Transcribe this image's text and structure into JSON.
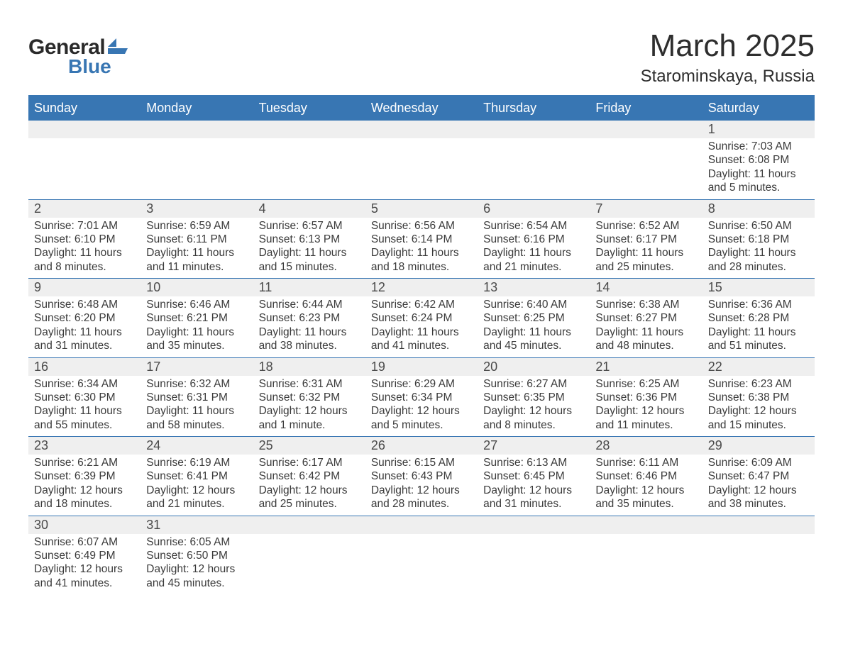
{
  "logo": {
    "textA": "General",
    "textB": "Blue",
    "brand_color": "#3876b3"
  },
  "title": "March 2025",
  "location": "Starominskaya, Russia",
  "colors": {
    "header_bg": "#3876b3",
    "header_fg": "#ffffff",
    "daynum_bg": "#efefef",
    "border": "#3876b3",
    "text": "#3a3a3a"
  },
  "day_headers": [
    "Sunday",
    "Monday",
    "Tuesday",
    "Wednesday",
    "Thursday",
    "Friday",
    "Saturday"
  ],
  "weeks": [
    [
      null,
      null,
      null,
      null,
      null,
      null,
      {
        "n": "1",
        "sunrise": "Sunrise: 7:03 AM",
        "sunset": "Sunset: 6:08 PM",
        "dayl1": "Daylight: 11 hours",
        "dayl2": "and 5 minutes."
      }
    ],
    [
      {
        "n": "2",
        "sunrise": "Sunrise: 7:01 AM",
        "sunset": "Sunset: 6:10 PM",
        "dayl1": "Daylight: 11 hours",
        "dayl2": "and 8 minutes."
      },
      {
        "n": "3",
        "sunrise": "Sunrise: 6:59 AM",
        "sunset": "Sunset: 6:11 PM",
        "dayl1": "Daylight: 11 hours",
        "dayl2": "and 11 minutes."
      },
      {
        "n": "4",
        "sunrise": "Sunrise: 6:57 AM",
        "sunset": "Sunset: 6:13 PM",
        "dayl1": "Daylight: 11 hours",
        "dayl2": "and 15 minutes."
      },
      {
        "n": "5",
        "sunrise": "Sunrise: 6:56 AM",
        "sunset": "Sunset: 6:14 PM",
        "dayl1": "Daylight: 11 hours",
        "dayl2": "and 18 minutes."
      },
      {
        "n": "6",
        "sunrise": "Sunrise: 6:54 AM",
        "sunset": "Sunset: 6:16 PM",
        "dayl1": "Daylight: 11 hours",
        "dayl2": "and 21 minutes."
      },
      {
        "n": "7",
        "sunrise": "Sunrise: 6:52 AM",
        "sunset": "Sunset: 6:17 PM",
        "dayl1": "Daylight: 11 hours",
        "dayl2": "and 25 minutes."
      },
      {
        "n": "8",
        "sunrise": "Sunrise: 6:50 AM",
        "sunset": "Sunset: 6:18 PM",
        "dayl1": "Daylight: 11 hours",
        "dayl2": "and 28 minutes."
      }
    ],
    [
      {
        "n": "9",
        "sunrise": "Sunrise: 6:48 AM",
        "sunset": "Sunset: 6:20 PM",
        "dayl1": "Daylight: 11 hours",
        "dayl2": "and 31 minutes."
      },
      {
        "n": "10",
        "sunrise": "Sunrise: 6:46 AM",
        "sunset": "Sunset: 6:21 PM",
        "dayl1": "Daylight: 11 hours",
        "dayl2": "and 35 minutes."
      },
      {
        "n": "11",
        "sunrise": "Sunrise: 6:44 AM",
        "sunset": "Sunset: 6:23 PM",
        "dayl1": "Daylight: 11 hours",
        "dayl2": "and 38 minutes."
      },
      {
        "n": "12",
        "sunrise": "Sunrise: 6:42 AM",
        "sunset": "Sunset: 6:24 PM",
        "dayl1": "Daylight: 11 hours",
        "dayl2": "and 41 minutes."
      },
      {
        "n": "13",
        "sunrise": "Sunrise: 6:40 AM",
        "sunset": "Sunset: 6:25 PM",
        "dayl1": "Daylight: 11 hours",
        "dayl2": "and 45 minutes."
      },
      {
        "n": "14",
        "sunrise": "Sunrise: 6:38 AM",
        "sunset": "Sunset: 6:27 PM",
        "dayl1": "Daylight: 11 hours",
        "dayl2": "and 48 minutes."
      },
      {
        "n": "15",
        "sunrise": "Sunrise: 6:36 AM",
        "sunset": "Sunset: 6:28 PM",
        "dayl1": "Daylight: 11 hours",
        "dayl2": "and 51 minutes."
      }
    ],
    [
      {
        "n": "16",
        "sunrise": "Sunrise: 6:34 AM",
        "sunset": "Sunset: 6:30 PM",
        "dayl1": "Daylight: 11 hours",
        "dayl2": "and 55 minutes."
      },
      {
        "n": "17",
        "sunrise": "Sunrise: 6:32 AM",
        "sunset": "Sunset: 6:31 PM",
        "dayl1": "Daylight: 11 hours",
        "dayl2": "and 58 minutes."
      },
      {
        "n": "18",
        "sunrise": "Sunrise: 6:31 AM",
        "sunset": "Sunset: 6:32 PM",
        "dayl1": "Daylight: 12 hours",
        "dayl2": "and 1 minute."
      },
      {
        "n": "19",
        "sunrise": "Sunrise: 6:29 AM",
        "sunset": "Sunset: 6:34 PM",
        "dayl1": "Daylight: 12 hours",
        "dayl2": "and 5 minutes."
      },
      {
        "n": "20",
        "sunrise": "Sunrise: 6:27 AM",
        "sunset": "Sunset: 6:35 PM",
        "dayl1": "Daylight: 12 hours",
        "dayl2": "and 8 minutes."
      },
      {
        "n": "21",
        "sunrise": "Sunrise: 6:25 AM",
        "sunset": "Sunset: 6:36 PM",
        "dayl1": "Daylight: 12 hours",
        "dayl2": "and 11 minutes."
      },
      {
        "n": "22",
        "sunrise": "Sunrise: 6:23 AM",
        "sunset": "Sunset: 6:38 PM",
        "dayl1": "Daylight: 12 hours",
        "dayl2": "and 15 minutes."
      }
    ],
    [
      {
        "n": "23",
        "sunrise": "Sunrise: 6:21 AM",
        "sunset": "Sunset: 6:39 PM",
        "dayl1": "Daylight: 12 hours",
        "dayl2": "and 18 minutes."
      },
      {
        "n": "24",
        "sunrise": "Sunrise: 6:19 AM",
        "sunset": "Sunset: 6:41 PM",
        "dayl1": "Daylight: 12 hours",
        "dayl2": "and 21 minutes."
      },
      {
        "n": "25",
        "sunrise": "Sunrise: 6:17 AM",
        "sunset": "Sunset: 6:42 PM",
        "dayl1": "Daylight: 12 hours",
        "dayl2": "and 25 minutes."
      },
      {
        "n": "26",
        "sunrise": "Sunrise: 6:15 AM",
        "sunset": "Sunset: 6:43 PM",
        "dayl1": "Daylight: 12 hours",
        "dayl2": "and 28 minutes."
      },
      {
        "n": "27",
        "sunrise": "Sunrise: 6:13 AM",
        "sunset": "Sunset: 6:45 PM",
        "dayl1": "Daylight: 12 hours",
        "dayl2": "and 31 minutes."
      },
      {
        "n": "28",
        "sunrise": "Sunrise: 6:11 AM",
        "sunset": "Sunset: 6:46 PM",
        "dayl1": "Daylight: 12 hours",
        "dayl2": "and 35 minutes."
      },
      {
        "n": "29",
        "sunrise": "Sunrise: 6:09 AM",
        "sunset": "Sunset: 6:47 PM",
        "dayl1": "Daylight: 12 hours",
        "dayl2": "and 38 minutes."
      }
    ],
    [
      {
        "n": "30",
        "sunrise": "Sunrise: 6:07 AM",
        "sunset": "Sunset: 6:49 PM",
        "dayl1": "Daylight: 12 hours",
        "dayl2": "and 41 minutes."
      },
      {
        "n": "31",
        "sunrise": "Sunrise: 6:05 AM",
        "sunset": "Sunset: 6:50 PM",
        "dayl1": "Daylight: 12 hours",
        "dayl2": "and 45 minutes."
      },
      null,
      null,
      null,
      null,
      null
    ]
  ]
}
